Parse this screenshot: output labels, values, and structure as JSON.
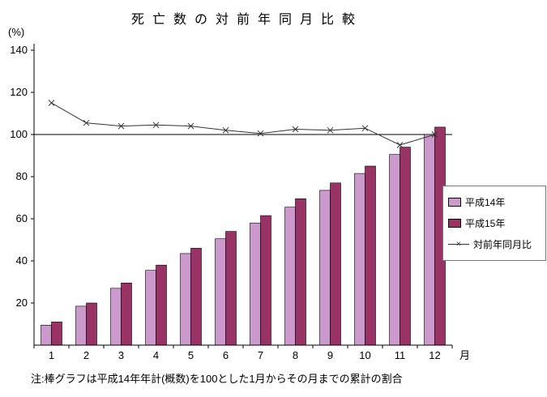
{
  "chart_data": {
    "type": "bar",
    "title": "死亡数の対前年同月比較",
    "y_unit": "(%)",
    "x_unit": "月",
    "categories": [
      "1",
      "2",
      "3",
      "4",
      "5",
      "6",
      "7",
      "8",
      "9",
      "10",
      "11",
      "12"
    ],
    "ylim": [
      0,
      140
    ],
    "yticks": [
      20,
      40,
      60,
      80,
      100,
      120,
      140
    ],
    "reference_line": 100,
    "grid": "off",
    "legend_position": "right",
    "series": [
      {
        "name": "平成14年",
        "type": "bar",
        "color": "#cc99cc",
        "values": [
          9.5,
          18.5,
          27,
          35.5,
          43.5,
          50.5,
          58,
          65.5,
          73.5,
          81.5,
          90.5,
          100
        ]
      },
      {
        "name": "平成15年",
        "type": "bar",
        "color": "#993366",
        "values": [
          11,
          20,
          29.5,
          38,
          46,
          54,
          61.5,
          69.5,
          77,
          85,
          94,
          103.5
        ]
      },
      {
        "name": "対前年同月比",
        "type": "line",
        "color": "#333333",
        "marker": "x",
        "values": [
          115,
          105.5,
          104,
          104.5,
          104,
          102,
          100.5,
          102.5,
          102,
          103,
          95,
          100
        ]
      }
    ],
    "note": "注:棒グラフは平成14年年計(概数)を100とした1月からその月までの累計の割合"
  }
}
